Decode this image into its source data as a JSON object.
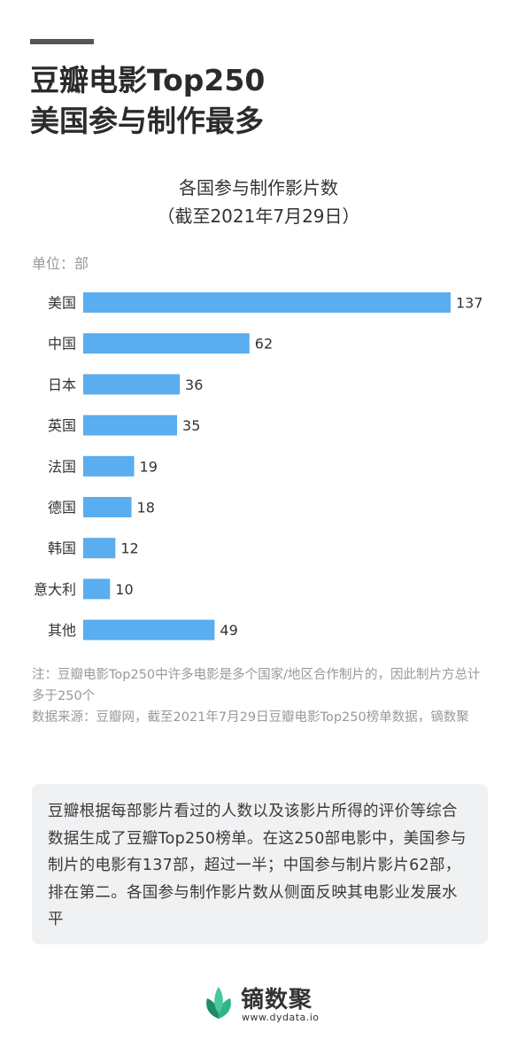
{
  "header": {
    "line1": "豆瓣电影Top250",
    "line2": "美国参与制作最多"
  },
  "chart_data": {
    "type": "bar",
    "orientation": "horizontal",
    "title": "各国参与制作影片数",
    "subtitle": "（截至2021年7月29日）",
    "unit": "单位：部",
    "categories": [
      "美国",
      "中国",
      "日本",
      "英国",
      "法国",
      "德国",
      "韩国",
      "意大利",
      "其他"
    ],
    "values": [
      137,
      62,
      36,
      35,
      19,
      18,
      12,
      10,
      49
    ],
    "xlim": [
      0,
      137
    ],
    "grid": false,
    "bar_color": "#5aadee"
  },
  "notes": {
    "note": "注：豆瓣电影Top250中许多电影是多个国家/地区合作制片的，因此制片方总计多于250个",
    "source": "数据来源：豆瓣网，截至2021年7月29日豆瓣电影Top250榜单数据，镝数聚"
  },
  "summary": "豆瓣根据每部影片看过的人数以及该影片所得的评价等综合数据生成了豆瓣Top250榜单。在这250部电影中，美国参与制片的电影有137部，超过一半；中国参与制片影片62部，排在第二。各国参与制作影片数从侧面反映其电影业发展水平",
  "footer": {
    "brand": "镝数聚",
    "url": "www.dydata.io",
    "logo_icon": "leaf-logo-icon"
  }
}
